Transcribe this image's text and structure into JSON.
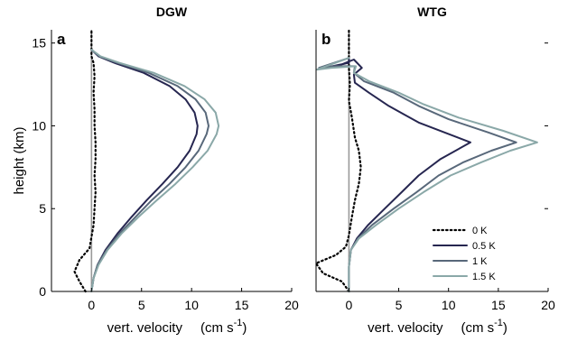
{
  "colors": {
    "zero_ref": "#9a9a9a",
    "frame": "#000000"
  },
  "chart_data": [
    {
      "type": "line",
      "panel": "a",
      "title": "DGW",
      "xlabel_text": "vert. velocity",
      "xlabel_unit_base": "(cm s",
      "xlabel_unit_exp": "-1",
      "xlabel_unit_close": ")",
      "ylabel": "height (km)",
      "xlim": [
        -4,
        20
      ],
      "ylim": [
        0,
        15.8
      ],
      "xticks": [
        0,
        5,
        10,
        15,
        20
      ],
      "yticks": [
        0,
        5,
        10,
        15
      ],
      "grid": false,
      "series": [
        {
          "name": "0 K",
          "color": "#000000",
          "style": "dotted",
          "points": [
            [
              -0.6,
              0
            ],
            [
              -1.2,
              0.6
            ],
            [
              -1.7,
              1.2
            ],
            [
              -1.2,
              1.9
            ],
            [
              -0.2,
              2.6
            ],
            [
              0,
              3.3
            ],
            [
              0.2,
              4
            ],
            [
              0.3,
              5
            ],
            [
              0.4,
              6
            ],
            [
              0.3,
              7
            ],
            [
              0.4,
              8
            ],
            [
              0.4,
              9
            ],
            [
              0.3,
              10
            ],
            [
              0.3,
              11
            ],
            [
              0.2,
              12
            ],
            [
              0.3,
              13
            ],
            [
              0.2,
              13.8
            ],
            [
              0,
              14.2
            ],
            [
              0,
              15.8
            ]
          ]
        },
        {
          "name": "0.5 K",
          "color": "#262650",
          "style": "solid",
          "points": [
            [
              0,
              0
            ],
            [
              0.2,
              0.8
            ],
            [
              0.6,
              1.6
            ],
            [
              1.4,
              2.5
            ],
            [
              2.6,
              3.5
            ],
            [
              4,
              4.5
            ],
            [
              5.5,
              5.5
            ],
            [
              7.1,
              6.5
            ],
            [
              8.6,
              7.5
            ],
            [
              9.8,
              8.5
            ],
            [
              10.5,
              9.5
            ],
            [
              10.6,
              10
            ],
            [
              10.3,
              10.8
            ],
            [
              9.4,
              11.6
            ],
            [
              7.8,
              12.4
            ],
            [
              5.2,
              13.2
            ],
            [
              2.3,
              13.8
            ],
            [
              0.7,
              14.2
            ],
            [
              0,
              14.6
            ]
          ]
        },
        {
          "name": "1 K",
          "color": "#58687a",
          "style": "solid",
          "points": [
            [
              0,
              0
            ],
            [
              0.2,
              0.8
            ],
            [
              0.6,
              1.6
            ],
            [
              1.5,
              2.5
            ],
            [
              2.8,
              3.5
            ],
            [
              4.4,
              4.5
            ],
            [
              6,
              5.5
            ],
            [
              7.8,
              6.5
            ],
            [
              9.4,
              7.5
            ],
            [
              10.7,
              8.5
            ],
            [
              11.5,
              9.5
            ],
            [
              11.7,
              10
            ],
            [
              11.4,
              10.8
            ],
            [
              10.4,
              11.6
            ],
            [
              8.6,
              12.4
            ],
            [
              5.7,
              13.2
            ],
            [
              2.6,
              13.8
            ],
            [
              0.8,
              14.2
            ],
            [
              0,
              14.6
            ]
          ]
        },
        {
          "name": "1.5 K",
          "color": "#8aa8a8",
          "style": "solid",
          "points": [
            [
              0,
              0
            ],
            [
              0.2,
              0.8
            ],
            [
              0.7,
              1.6
            ],
            [
              1.6,
              2.5
            ],
            [
              3,
              3.5
            ],
            [
              4.7,
              4.5
            ],
            [
              6.5,
              5.5
            ],
            [
              8.4,
              6.5
            ],
            [
              10.1,
              7.5
            ],
            [
              11.6,
              8.5
            ],
            [
              12.5,
              9.5
            ],
            [
              12.7,
              10
            ],
            [
              12.4,
              10.8
            ],
            [
              11.3,
              11.6
            ],
            [
              9.3,
              12.4
            ],
            [
              6.2,
              13.2
            ],
            [
              2.8,
              13.8
            ],
            [
              0.9,
              14.2
            ],
            [
              0,
              14.6
            ]
          ]
        }
      ]
    },
    {
      "type": "line",
      "panel": "b",
      "title": "WTG",
      "xlabel_text": "vert. velocity",
      "xlabel_unit_base": "(cm s",
      "xlabel_unit_exp": "-1",
      "xlabel_unit_close": ")",
      "ylabel": "",
      "xlim": [
        -3.3,
        20
      ],
      "ylim": [
        0,
        15.8
      ],
      "xticks": [
        0,
        5,
        10,
        15,
        20
      ],
      "yticks": [
        0,
        5,
        10,
        15
      ],
      "grid": false,
      "legend_position": "bottom-right",
      "series": [
        {
          "name": "0 K",
          "color": "#000000",
          "style": "dotted",
          "points": [
            [
              0,
              0
            ],
            [
              -0.7,
              0.6
            ],
            [
              -2.6,
              1.1
            ],
            [
              -3.3,
              1.7
            ],
            [
              -1.3,
              2.2
            ],
            [
              -0.3,
              2.7
            ],
            [
              0,
              3.4
            ],
            [
              0.3,
              4.5
            ],
            [
              0.6,
              5.5
            ],
            [
              1,
              6.5
            ],
            [
              1.2,
              7.5
            ],
            [
              1,
              8.5
            ],
            [
              0.6,
              9.3
            ],
            [
              0.3,
              10.5
            ],
            [
              0,
              11.5
            ],
            [
              0.1,
              12.5
            ],
            [
              0,
              13.5
            ],
            [
              0,
              15.8
            ]
          ]
        },
        {
          "name": "0.5 K",
          "color": "#262650",
          "style": "solid",
          "points": [
            [
              0,
              0
            ],
            [
              0,
              1.5
            ],
            [
              0.2,
              2.5
            ],
            [
              0.8,
              3.2
            ],
            [
              1.9,
              4
            ],
            [
              3.6,
              5
            ],
            [
              5.3,
              6
            ],
            [
              7,
              7
            ],
            [
              9.2,
              8
            ],
            [
              12.2,
              9
            ],
            [
              7,
              10.2
            ],
            [
              4,
              11.2
            ],
            [
              2,
              12
            ],
            [
              0.6,
              12.6
            ],
            [
              0.5,
              13.1
            ],
            [
              1.3,
              13.5
            ],
            [
              0.5,
              14
            ],
            [
              -1.2,
              13.6
            ],
            [
              -2.5,
              13.5
            ],
            [
              0,
              13.8
            ],
            [
              0,
              14.1
            ]
          ]
        },
        {
          "name": "1 K",
          "color": "#58687a",
          "style": "solid",
          "points": [
            [
              0,
              0
            ],
            [
              0,
              1.5
            ],
            [
              0.2,
              2.5
            ],
            [
              0.9,
              3.2
            ],
            [
              2.3,
              4
            ],
            [
              4.5,
              5
            ],
            [
              6.8,
              6
            ],
            [
              9,
              7
            ],
            [
              11.5,
              7.8
            ],
            [
              14.3,
              8.5
            ],
            [
              16.8,
              9
            ],
            [
              14,
              9.6
            ],
            [
              10,
              10.4
            ],
            [
              7,
              11.2
            ],
            [
              4.5,
              12
            ],
            [
              1.5,
              12.7
            ],
            [
              0.5,
              13.2
            ],
            [
              0.6,
              13.6
            ],
            [
              -1.5,
              13.6
            ],
            [
              -3,
              13.5
            ],
            [
              0,
              14.1
            ]
          ]
        },
        {
          "name": "1.5 K",
          "color": "#8aa8a8",
          "style": "solid",
          "points": [
            [
              0,
              0
            ],
            [
              0,
              1.5
            ],
            [
              0.2,
              2.5
            ],
            [
              1,
              3.2
            ],
            [
              2.7,
              4
            ],
            [
              5,
              5
            ],
            [
              7.5,
              6
            ],
            [
              10.2,
              7
            ],
            [
              13.3,
              7.8
            ],
            [
              16.2,
              8.5
            ],
            [
              18.9,
              9
            ],
            [
              15.5,
              9.7
            ],
            [
              11,
              10.5
            ],
            [
              7.5,
              11.3
            ],
            [
              5,
              12
            ],
            [
              2,
              12.7
            ],
            [
              0.5,
              13.2
            ],
            [
              0.7,
              13.6
            ],
            [
              -1.8,
              13.5
            ],
            [
              -3.2,
              13.4
            ],
            [
              0,
              14.1
            ]
          ]
        }
      ]
    }
  ]
}
